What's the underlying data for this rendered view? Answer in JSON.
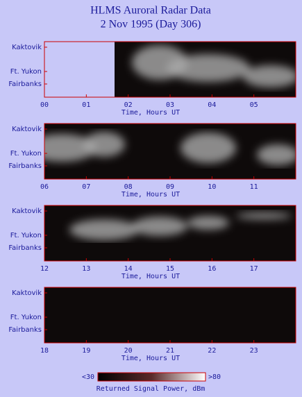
{
  "title": "HLMS Auroral Radar Data",
  "subtitle": "2 Nov 1995 (Day 306)",
  "chart_data": [
    {
      "type": "heatmap",
      "xlabel": "Time, Hours UT",
      "categories": [
        "Kaktovik",
        "Ft. Yukon",
        "Fairbanks"
      ],
      "xlim": [
        0,
        6
      ],
      "xticks": [
        {
          "value": 0,
          "label": "00"
        },
        {
          "value": 1,
          "label": "01"
        },
        {
          "value": 2,
          "label": "02"
        },
        {
          "value": 3,
          "label": "03"
        },
        {
          "value": 4,
          "label": "04"
        },
        {
          "value": 5,
          "label": "05"
        }
      ]
    },
    {
      "type": "heatmap",
      "xlabel": "Time, Hours UT",
      "categories": [
        "Kaktovik",
        "Ft. Yukon",
        "Fairbanks"
      ],
      "xlim": [
        6,
        12
      ],
      "xticks": [
        {
          "value": 6,
          "label": "06"
        },
        {
          "value": 7,
          "label": "07"
        },
        {
          "value": 8,
          "label": "08"
        },
        {
          "value": 9,
          "label": "09"
        },
        10,
        11
      ]
    },
    {
      "type": "heatmap",
      "xlabel": "Time, Hours UT",
      "categories": [
        "Kaktovik",
        "Ft. Yukon",
        "Fairbanks"
      ],
      "xlim": [
        12,
        18
      ],
      "xticks": [
        12,
        13,
        14,
        15,
        16,
        17
      ]
    },
    {
      "type": "heatmap",
      "xlabel": "Time, Hours UT",
      "categories": [
        "Kaktovik",
        "Ft. Yukon",
        "Fairbanks"
      ],
      "xlim": [
        18,
        24
      ],
      "xticks": [
        18,
        19,
        20,
        21,
        22,
        23
      ]
    }
  ],
  "colorbar": {
    "label": "Returned Signal Power, dBm",
    "min_label": "<30",
    "max_label": ">80"
  }
}
